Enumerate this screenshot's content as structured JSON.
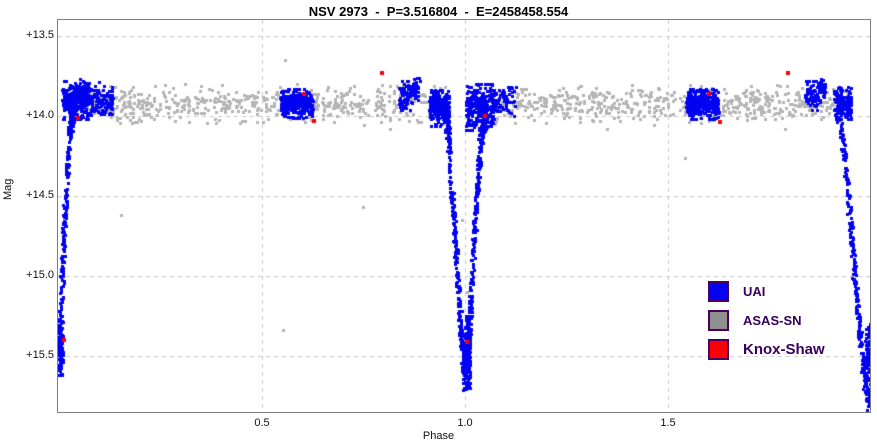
{
  "page": {
    "title": "NSV 2973  -  P=3.516804  -  E=2458458.554"
  },
  "chart_data": {
    "type": "scatter",
    "title": "NSV 2973  -  P=3.516804  -  E=2458458.554",
    "description": "Phased eclipsing-binary light curve plotted over two cycles; deep primary eclipses near phase 0, 1 and 2 reaching mag ~15.7 from an out-of-eclipse level of mag ~13.9",
    "xlabel": "Phase",
    "ylabel": "Mag",
    "xlim": [
      -0.0025,
      1.9975
    ],
    "ylim_mag": [
      13.4,
      15.85
    ],
    "y_axis_inverted_brightness": true,
    "grid": {
      "style": "dashed",
      "color": "#c9c9c9"
    },
    "frame_color": "#7d7d7d",
    "xticks": [
      {
        "v": 0.5,
        "label": "0.5"
      },
      {
        "v": 1.0,
        "label": "1.0"
      },
      {
        "v": 1.5,
        "label": "1.5"
      }
    ],
    "yticks": [
      {
        "v": 13.5,
        "label": "+13.5"
      },
      {
        "v": 14.0,
        "label": "+14.0"
      },
      {
        "v": 14.5,
        "label": "+14.5"
      },
      {
        "v": 15.0,
        "label": "+15.0"
      },
      {
        "v": 15.5,
        "label": "+15.5"
      }
    ],
    "legend": {
      "position": "lower-right",
      "text_color": "#37005c",
      "swatch_border": "#4a015e",
      "entries": [
        {
          "name": "UAI",
          "color": "#0202f2"
        },
        {
          "name": "ASAS-SN",
          "color": "#8f8f8f"
        },
        {
          "name": "Knox-Shaw",
          "color": "#fb0006"
        }
      ]
    },
    "series": {
      "uai": {
        "color": "#0202f2",
        "marker_px": 3,
        "out_of_eclipse_mag": 13.9,
        "clusters": [
          {
            "p": [
              0.008,
              0.082
            ],
            "m": [
              13.78,
              14.02
            ],
            "n": 320
          },
          {
            "p": [
              0.085,
              0.132
            ],
            "m": [
              13.81,
              13.99
            ],
            "n": 110
          },
          {
            "p": [
              0.545,
              0.625
            ],
            "m": [
              13.83,
              14.01
            ],
            "n": 300
          },
          {
            "p": [
              0.838,
              0.868
            ],
            "m": [
              13.78,
              13.96
            ],
            "n": 70
          },
          {
            "p": [
              0.868,
              0.886
            ],
            "m": [
              13.76,
              13.92
            ],
            "n": 45
          },
          {
            "p": [
              0.912,
              0.962
            ],
            "m": [
              13.84,
              14.06
            ],
            "n": 260
          },
          {
            "p": [
              1.002,
              1.072
            ],
            "m": [
              13.8,
              14.09
            ],
            "n": 300
          },
          {
            "p": [
              1.072,
              1.125
            ],
            "m": [
              13.82,
              14.0
            ],
            "n": 60
          },
          {
            "p": [
              1.545,
              1.625
            ],
            "m": [
              13.83,
              14.02
            ],
            "n": 300
          },
          {
            "p": [
              1.838,
              1.868
            ],
            "m": [
              13.78,
              13.96
            ],
            "n": 70
          },
          {
            "p": [
              1.868,
              1.888
            ],
            "m": [
              13.76,
              13.93
            ],
            "n": 45
          },
          {
            "p": [
              1.908,
              1.952
            ],
            "m": [
              13.82,
              14.02
            ],
            "n": 170
          },
          {
            "p": [
              0.996,
              1.013
            ],
            "m": [
              15.25,
              15.7
            ],
            "n": 160
          },
          {
            "p": [
              -0.002,
              0.01
            ],
            "m": [
              15.28,
              15.62
            ],
            "n": 110
          },
          {
            "p": [
              1.985,
              1.9975
            ],
            "m": [
              15.3,
              15.78
            ],
            "n": 90
          }
        ],
        "eclipse_branches": [
          {
            "pts": [
              [
                0.0,
                15.55
              ],
              [
                0.004,
                15.25
              ],
              [
                0.01,
                14.85
              ],
              [
                0.017,
                14.45
              ],
              [
                0.026,
                14.1
              ],
              [
                0.038,
                13.92
              ]
            ],
            "n": 260,
            "pj": 0.004,
            "mj": 0.07
          },
          {
            "pts": [
              [
                0.952,
                13.96
              ],
              [
                0.962,
                14.25
              ],
              [
                0.972,
                14.65
              ],
              [
                0.982,
                15.05
              ],
              [
                0.991,
                15.4
              ],
              [
                0.999,
                15.66
              ]
            ],
            "n": 300,
            "pj": 0.004,
            "mj": 0.08
          },
          {
            "pts": [
              [
                1.003,
                15.66
              ],
              [
                1.01,
                15.35
              ],
              [
                1.018,
                14.95
              ],
              [
                1.028,
                14.5
              ],
              [
                1.039,
                14.12
              ],
              [
                1.052,
                13.94
              ]
            ],
            "n": 300,
            "pj": 0.004,
            "mj": 0.08
          },
          {
            "pts": [
              [
                1.92,
                13.96
              ],
              [
                1.933,
                14.22
              ],
              [
                1.947,
                14.6
              ],
              [
                1.96,
                15.0
              ],
              [
                1.972,
                15.35
              ],
              [
                1.984,
                15.62
              ],
              [
                1.994,
                15.78
              ]
            ],
            "n": 280,
            "pj": 0.004,
            "mj": 0.07
          }
        ],
        "outliers": [
          [
            0.051,
            13.77
          ],
          [
            0.098,
            13.79
          ],
          [
            0.889,
            13.78
          ]
        ]
      },
      "asassn": {
        "color": "#b5b5b5",
        "marker_px": 3,
        "band": {
          "p": [
            0.062,
            1.945
          ],
          "mean": 13.925,
          "sigma": 0.055,
          "clip": [
            13.8,
            14.1
          ],
          "exclude": [
            0.952,
            1.048
          ],
          "n": 1150
        },
        "outliers": [
          [
            0.556,
            13.65
          ],
          [
            0.152,
            14.62
          ],
          [
            0.749,
            14.57
          ],
          [
            0.552,
            15.34
          ],
          [
            1.542,
            14.26
          ],
          [
            1.788,
            14.08
          ],
          [
            0.961,
            14.07
          ],
          [
            0.993,
            14.65
          ],
          [
            0.98,
            14.9
          ],
          [
            1.005,
            15.1
          ]
        ]
      },
      "knox_shaw": {
        "color": "#fb0006",
        "marker_px": 4,
        "points": [
          [
            0.012,
            15.4
          ],
          [
            0.046,
            14.01
          ],
          [
            0.604,
            13.86
          ],
          [
            0.628,
            14.03
          ],
          [
            0.795,
            13.73
          ],
          [
            1.005,
            15.41
          ],
          [
            1.049,
            14.0
          ],
          [
            1.601,
            13.86
          ],
          [
            1.628,
            14.04
          ],
          [
            1.795,
            13.73
          ]
        ]
      }
    }
  }
}
